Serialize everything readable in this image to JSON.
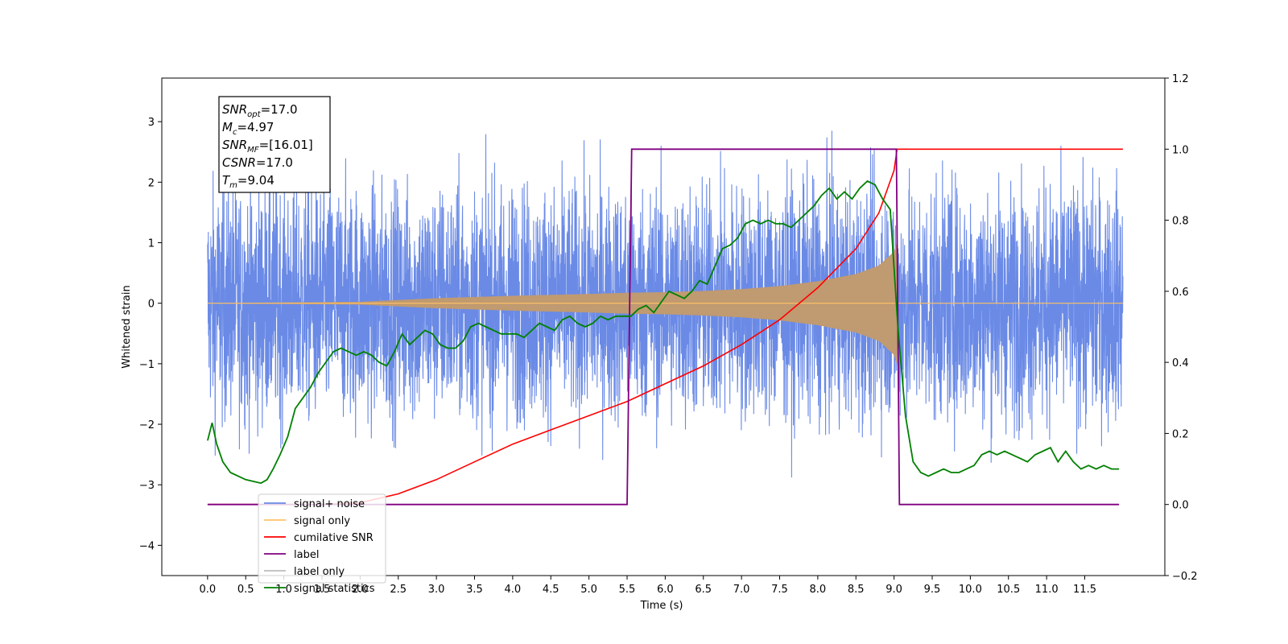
{
  "chart_data": {
    "type": "line",
    "xlabel": "Time (s)",
    "ylabel": "Whitened strain",
    "xlim": [
      -0.6,
      12.55
    ],
    "ylim": [
      -4.5,
      3.72
    ],
    "y2lim": [
      -0.2,
      1.2
    ],
    "xticks": [
      0.0,
      0.5,
      1.0,
      1.5,
      2.0,
      2.5,
      3.0,
      3.5,
      4.0,
      4.5,
      5.0,
      5.5,
      6.0,
      6.5,
      7.0,
      7.5,
      8.0,
      8.5,
      9.0,
      9.5,
      10.0,
      10.5,
      11.0,
      11.5
    ],
    "xtick_labels": [
      "0.0",
      "0.5",
      "1.0",
      "1.5",
      "2.0",
      "2.5",
      "3.0",
      "3.5",
      "4.0",
      "4.5",
      "5.0",
      "5.5",
      "6.0",
      "6.5",
      "7.0",
      "7.5",
      "8.0",
      "8.5",
      "9.0",
      "9.5",
      "10.0",
      "10.5",
      "11.0",
      "11.5"
    ],
    "yticks": [
      -4,
      -3,
      -2,
      -1,
      0,
      1,
      2,
      3
    ],
    "ytick_labels": [
      "−4",
      "−3",
      "−2",
      "−1",
      "0",
      "1",
      "2",
      "3"
    ],
    "y2ticks": [
      -0.2,
      0.0,
      0.2,
      0.4,
      0.6,
      0.8,
      1.0,
      1.2
    ],
    "y2tick_labels": [
      "−0.2",
      "0.0",
      "0.2",
      "0.4",
      "0.6",
      "0.8",
      "1.0",
      "1.2"
    ],
    "grid": false,
    "legend_placement": "lower-left",
    "legend": [
      {
        "label": "signal+ noise",
        "color": "#6a8ae6"
      },
      {
        "label": "signal only",
        "color": "#ffc266"
      },
      {
        "label": "cumilative SNR",
        "color": "#ff0000"
      },
      {
        "label": "label",
        "color": "#800080"
      },
      {
        "label": "label only",
        "color": "#bbbbbb"
      },
      {
        "label": "signal statistics",
        "color": "#008000"
      }
    ],
    "annotation": {
      "lines": [
        {
          "sym": "SNR",
          "sub": "opt",
          "val": "=17.0"
        },
        {
          "sym": "M",
          "sub": "c",
          "val": "=4.97"
        },
        {
          "sym": "SNR",
          "sub": "MF",
          "val": "=[16.01]"
        },
        {
          "sym": "CSNR",
          "sub": "",
          "val": "=17.0"
        },
        {
          "sym": "T",
          "sub": "m",
          "val": "=9.04"
        }
      ]
    },
    "series": [
      {
        "name": "signal+ noise",
        "color": "#6a8ae6",
        "axis": "left",
        "x_range": [
          0.0,
          12.0
        ],
        "noise_std": 0.95
      },
      {
        "name": "signal only",
        "color": "#c09a70",
        "axis": "left",
        "envelope_x": [
          0.0,
          2.0,
          3.0,
          4.0,
          5.0,
          5.5,
          6.0,
          6.5,
          7.0,
          7.5,
          8.0,
          8.5,
          8.8,
          9.0,
          9.04,
          9.05,
          12.0
        ],
        "envelope_y": [
          0.0,
          0.02,
          0.08,
          0.12,
          0.15,
          0.17,
          0.18,
          0.2,
          0.23,
          0.28,
          0.36,
          0.48,
          0.62,
          0.85,
          1.0,
          0.0,
          0.0
        ]
      },
      {
        "name": "cumilative SNR",
        "color": "#ff0000",
        "axis": "right",
        "x": [
          0.0,
          1.5,
          2.0,
          2.5,
          3.0,
          3.5,
          4.0,
          4.5,
          5.0,
          5.5,
          6.0,
          6.5,
          7.0,
          7.5,
          8.0,
          8.5,
          8.8,
          9.0,
          9.04,
          12.0
        ],
        "y": [
          0.0,
          0.0,
          0.005,
          0.03,
          0.07,
          0.12,
          0.17,
          0.21,
          0.25,
          0.29,
          0.34,
          0.39,
          0.45,
          0.52,
          0.61,
          0.72,
          0.82,
          0.94,
          1.0,
          1.0
        ]
      },
      {
        "name": "label",
        "color": "#800080",
        "axis": "right",
        "x": [
          0.0,
          5.5,
          5.56,
          9.03,
          9.07,
          11.95
        ],
        "y": [
          0.0,
          0.0,
          1.0,
          1.0,
          0.0,
          0.0
        ]
      },
      {
        "name": "signal statistics",
        "color": "#008000",
        "axis": "right",
        "x": [
          0.0,
          0.06,
          0.12,
          0.2,
          0.3,
          0.4,
          0.5,
          0.6,
          0.7,
          0.78,
          0.86,
          0.95,
          1.05,
          1.15,
          1.25,
          1.35,
          1.45,
          1.55,
          1.65,
          1.75,
          1.85,
          1.95,
          2.05,
          2.15,
          2.25,
          2.35,
          2.45,
          2.55,
          2.65,
          2.75,
          2.85,
          2.95,
          3.05,
          3.15,
          3.25,
          3.35,
          3.45,
          3.55,
          3.65,
          3.75,
          3.85,
          3.95,
          4.05,
          4.15,
          4.25,
          4.35,
          4.45,
          4.55,
          4.65,
          4.75,
          4.85,
          4.95,
          5.05,
          5.15,
          5.25,
          5.35,
          5.45,
          5.55,
          5.65,
          5.75,
          5.85,
          5.95,
          6.05,
          6.15,
          6.25,
          6.35,
          6.45,
          6.55,
          6.65,
          6.75,
          6.85,
          6.95,
          7.05,
          7.15,
          7.25,
          7.35,
          7.45,
          7.55,
          7.65,
          7.75,
          7.85,
          7.95,
          8.05,
          8.15,
          8.25,
          8.35,
          8.45,
          8.55,
          8.65,
          8.75,
          8.85,
          8.95,
          9.05,
          9.15,
          9.25,
          9.35,
          9.45,
          9.55,
          9.65,
          9.75,
          9.85,
          9.95,
          10.05,
          10.15,
          10.25,
          10.35,
          10.45,
          10.55,
          10.65,
          10.75,
          10.85,
          10.95,
          11.05,
          11.15,
          11.25,
          11.35,
          11.45,
          11.55,
          11.65,
          11.75,
          11.85,
          11.95
        ],
        "y": [
          0.18,
          0.23,
          0.17,
          0.12,
          0.09,
          0.08,
          0.07,
          0.065,
          0.06,
          0.07,
          0.1,
          0.14,
          0.19,
          0.27,
          0.3,
          0.33,
          0.37,
          0.4,
          0.43,
          0.44,
          0.43,
          0.42,
          0.43,
          0.42,
          0.4,
          0.39,
          0.43,
          0.48,
          0.45,
          0.47,
          0.49,
          0.48,
          0.45,
          0.44,
          0.44,
          0.46,
          0.5,
          0.51,
          0.5,
          0.49,
          0.48,
          0.48,
          0.48,
          0.47,
          0.49,
          0.51,
          0.5,
          0.49,
          0.52,
          0.53,
          0.51,
          0.5,
          0.51,
          0.53,
          0.52,
          0.53,
          0.53,
          0.53,
          0.55,
          0.56,
          0.54,
          0.57,
          0.6,
          0.59,
          0.58,
          0.6,
          0.63,
          0.62,
          0.67,
          0.72,
          0.73,
          0.75,
          0.79,
          0.8,
          0.79,
          0.8,
          0.79,
          0.79,
          0.78,
          0.8,
          0.82,
          0.84,
          0.87,
          0.89,
          0.86,
          0.88,
          0.86,
          0.89,
          0.91,
          0.9,
          0.86,
          0.83,
          0.5,
          0.25,
          0.12,
          0.09,
          0.08,
          0.09,
          0.1,
          0.09,
          0.09,
          0.1,
          0.11,
          0.14,
          0.15,
          0.14,
          0.15,
          0.14,
          0.13,
          0.12,
          0.14,
          0.15,
          0.16,
          0.12,
          0.15,
          0.12,
          0.1,
          0.11,
          0.1,
          0.11,
          0.1,
          0.1
        ]
      }
    ]
  }
}
